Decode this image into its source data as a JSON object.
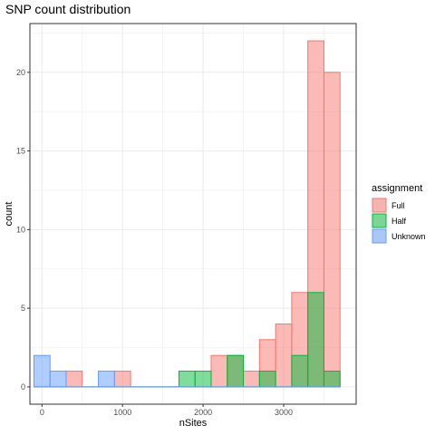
{
  "chart_data": {
    "type": "bar",
    "subtype": "histogram",
    "title": "SNP count distribution",
    "xlabel": "nSites",
    "ylabel": "count",
    "xlim": [
      -150,
      3900
    ],
    "ylim": [
      -1.1,
      23.1
    ],
    "x_ticks": [
      0,
      1000,
      2000,
      3000
    ],
    "x_tick_labels": [
      "0",
      "1000",
      "2000",
      "3000"
    ],
    "y_ticks": [
      0,
      5,
      10,
      15,
      20
    ],
    "y_tick_labels": [
      "0",
      "5",
      "10",
      "15",
      "20"
    ],
    "grid": true,
    "bin_width": 200,
    "bin_centers": [
      0,
      200,
      400,
      600,
      800,
      1000,
      1200,
      1400,
      1600,
      1800,
      2000,
      2200,
      2400,
      2600,
      2800,
      3000,
      3200,
      3400,
      3600
    ],
    "legend": {
      "title": "assignment",
      "position": "right"
    },
    "series": [
      {
        "name": "Full",
        "color": "#F8766D",
        "fill_opacity": 0.5,
        "values": [
          0,
          0,
          1,
          0,
          0,
          1,
          0,
          0,
          0,
          0,
          0,
          2,
          2,
          1,
          3,
          4,
          6,
          22,
          20
        ]
      },
      {
        "name": "Half",
        "color": "#00BA38",
        "fill_opacity": 0.5,
        "values": [
          0,
          0,
          0,
          0,
          0,
          0,
          0,
          0,
          0,
          1,
          1,
          0,
          2,
          0,
          1,
          0,
          2,
          6,
          1
        ]
      },
      {
        "name": "Unknown",
        "color": "#619CFF",
        "fill_opacity": 0.5,
        "values": [
          2,
          1,
          0,
          0,
          1,
          0,
          0,
          0,
          0,
          0,
          0,
          0,
          0,
          0,
          0,
          0,
          0,
          0,
          0
        ]
      }
    ]
  }
}
